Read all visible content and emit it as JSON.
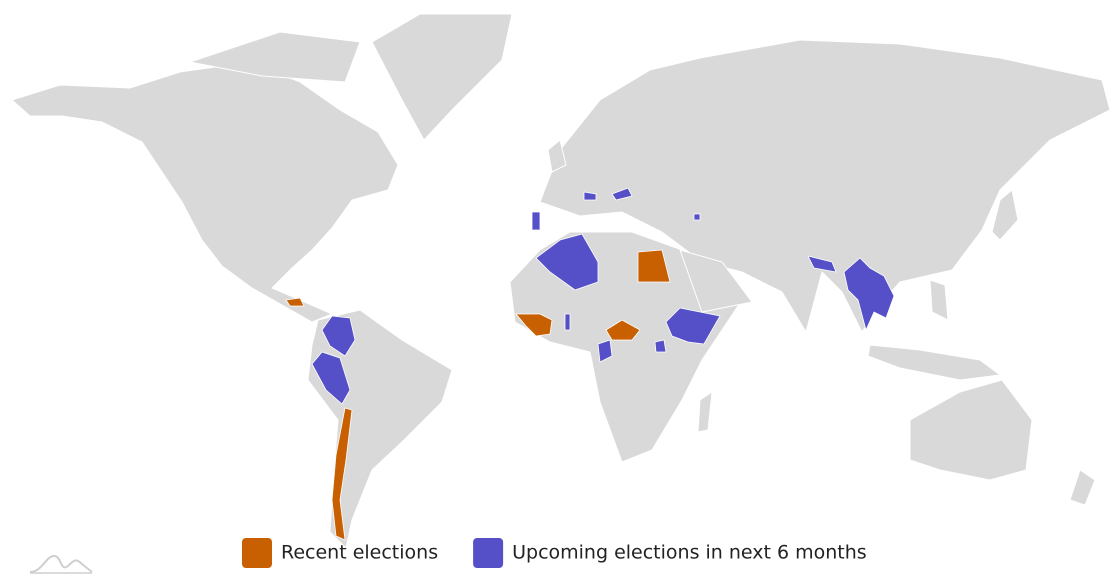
{
  "legend": {
    "items": [
      {
        "label": "Recent elections",
        "color": "#c85f00"
      },
      {
        "label": "Upcoming elections in next 6 months",
        "color": "#5550c8"
      }
    ]
  }
}
